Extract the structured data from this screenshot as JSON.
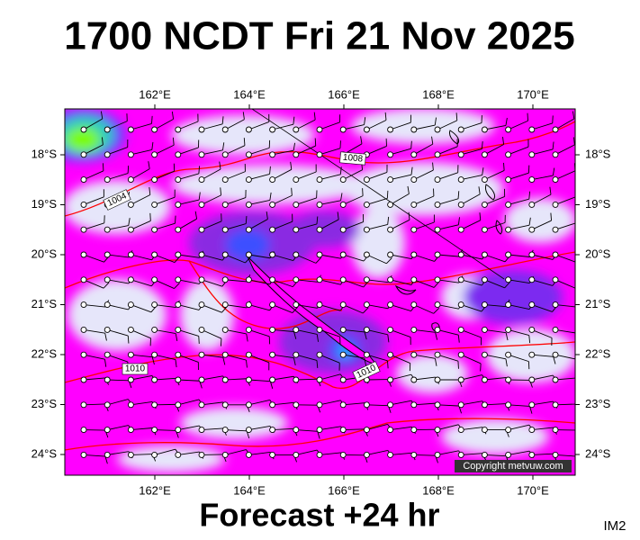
{
  "header": {
    "title": "1700 NCDT Fri 21 Nov 2025"
  },
  "map": {
    "lon_labels": [
      "162°E",
      "164°E",
      "166°E",
      "168°E",
      "170°E"
    ],
    "lat_labels": [
      "18°S",
      "19°S",
      "20°S",
      "21°S",
      "22°S",
      "23°S",
      "24°S"
    ],
    "isobar_labels": [
      "1008",
      "1004",
      "1010",
      "1010"
    ],
    "copyright": "Copyright metvuw.com"
  },
  "footer": {
    "forecast": "Forecast +24 hr",
    "image_id": "IM2"
  }
}
